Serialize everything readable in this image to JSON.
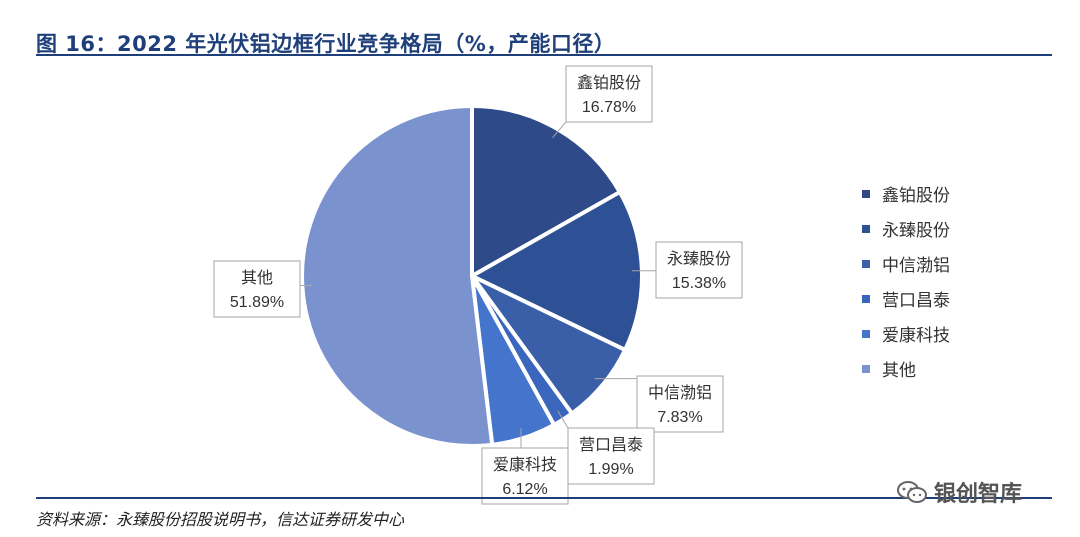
{
  "title": "图 16：2022 年光伏铝边框行业竞争格局（%，产能口径）",
  "source": "资料来源：永臻股份招股说明书，信达证券研发中心",
  "watermark": {
    "text": "银创智库",
    "icon": "wechat-icon"
  },
  "chart_data": {
    "type": "pie",
    "title": "图 16：2022 年光伏铝边框行业竞争格局（%，产能口径）",
    "legend_position": "right",
    "slices": [
      {
        "label": "鑫铂股份",
        "value": 16.78,
        "value_label": "16.78%",
        "color": "#2f4a88"
      },
      {
        "label": "永臻股份",
        "value": 15.38,
        "value_label": "15.38%",
        "color": "#2e5094"
      },
      {
        "label": "中信渤铝",
        "value": 7.83,
        "value_label": "7.83%",
        "color": "#3a5fa8"
      },
      {
        "label": "营口昌泰",
        "value": 1.99,
        "value_label": "1.99%",
        "color": "#3b66bd"
      },
      {
        "label": "爱康科技",
        "value": 6.12,
        "value_label": "6.12%",
        "color": "#4474cc"
      },
      {
        "label": "其他",
        "value": 51.89,
        "value_label": "51.89%",
        "color": "#7a93cf"
      }
    ]
  }
}
